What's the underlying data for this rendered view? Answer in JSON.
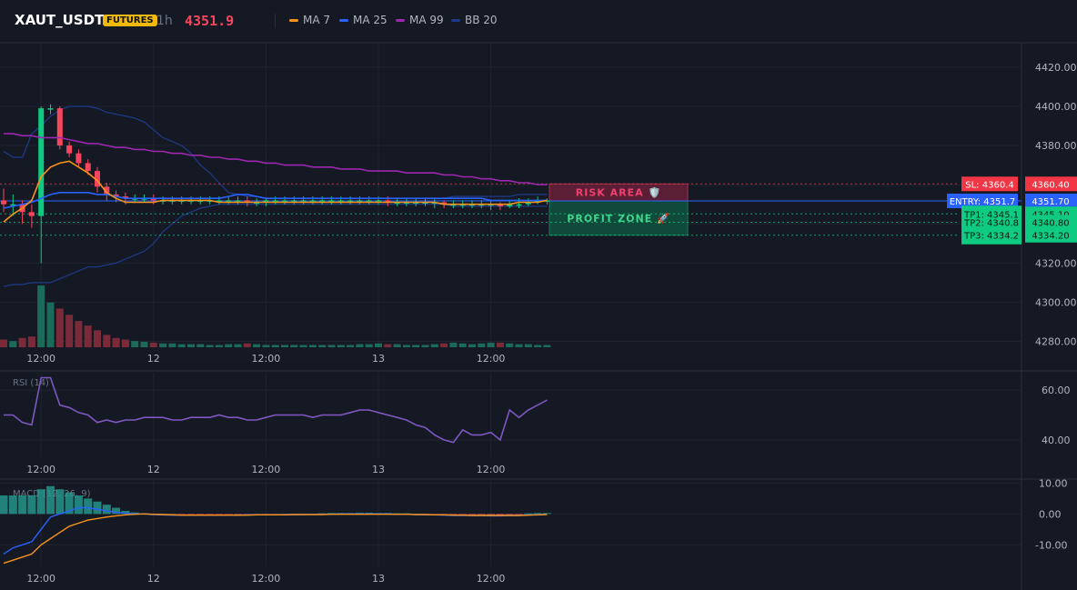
{
  "header": {
    "symbol": "XAUT_USDT",
    "badge": "FUTURES",
    "timeframe": "1h",
    "price": "4351.9",
    "legend": [
      {
        "label": "MA 7",
        "color": "#f7931a"
      },
      {
        "label": "MA 25",
        "color": "#2962ff"
      },
      {
        "label": "MA 99",
        "color": "#9c27b0"
      },
      {
        "label": "BB 20",
        "color": "#1e3a8a"
      }
    ]
  },
  "zones": {
    "risk_label": "RISK AREA 🛡️",
    "profit_label": "PROFIT ZONE 🚀"
  },
  "levels": [
    {
      "tag": "SL: 4360.4",
      "axis": "4360.40",
      "value": 4360.4,
      "color": "#f23645",
      "kind": "sl"
    },
    {
      "tag": "ENTRY: 4351.7",
      "axis": "4351.70",
      "value": 4351.7,
      "color": "#2962ff",
      "kind": "entry"
    },
    {
      "tag": "TP1: 4345.1",
      "axis": "4345.10",
      "value": 4345.1,
      "color": "#0ecb81",
      "kind": "tp"
    },
    {
      "tag": "TP2: 4340.8",
      "axis": "4340.80",
      "value": 4340.8,
      "color": "#0ecb81",
      "kind": "tp"
    },
    {
      "tag": "TP3: 4334.2",
      "axis": "4334.20",
      "value": 4334.2,
      "color": "#0ecb81",
      "kind": "tp"
    }
  ],
  "time_labels": [
    "12:00",
    "12",
    "12:00",
    "13",
    "12:00"
  ],
  "chart_data": [
    {
      "type": "candlestick",
      "title": "XAUT_USDT",
      "y_ticks": [
        "4420.00",
        "4400.00",
        "4380.00",
        "4360.00",
        "4340.00",
        "4320.00",
        "4300.00",
        "4280.00"
      ],
      "ylim": [
        4277,
        4432
      ],
      "x_tick_labels": [
        "12:00",
        "12",
        "12:00",
        "13",
        "12:00"
      ],
      "series": [
        {
          "name": "MA 7",
          "values": [
            4341,
            4345,
            4348,
            4352,
            4364,
            4369,
            4371,
            4372,
            4369,
            4366,
            4362,
            4356,
            4353,
            4351,
            4351,
            4351,
            4351,
            4352,
            4352,
            4352,
            4352,
            4352,
            4352,
            4351,
            4351,
            4351,
            4351,
            4351,
            4351,
            4351,
            4351,
            4351,
            4351,
            4351,
            4351,
            4351,
            4351,
            4351,
            4351,
            4351,
            4351,
            4351,
            4351,
            4351,
            4351,
            4351,
            4351,
            4350,
            4350,
            4350,
            4350,
            4350,
            4350,
            4350,
            4350,
            4351,
            4351,
            4351,
            4352
          ]
        },
        {
          "name": "MA 25",
          "values": [
            4348,
            4349,
            4350,
            4351,
            4353,
            4355,
            4356,
            4356,
            4356,
            4356,
            4355,
            4355,
            4354,
            4353,
            4353,
            4353,
            4353,
            4353,
            4353,
            4353,
            4353,
            4353,
            4353,
            4353,
            4354,
            4355,
            4355,
            4354,
            4353,
            4353,
            4353,
            4353,
            4353,
            4353,
            4353,
            4353,
            4353,
            4353,
            4353,
            4353,
            4353,
            4353,
            4353,
            4353,
            4353,
            4353,
            4353,
            4353,
            4353,
            4353,
            4353,
            4353,
            4352,
            4352,
            4352,
            4352,
            4352,
            4352,
            4352
          ]
        },
        {
          "name": "MA 99",
          "values": [
            4386,
            4386,
            4385,
            4385,
            4384,
            4384,
            4384,
            4383,
            4382,
            4381,
            4381,
            4380,
            4379,
            4379,
            4378,
            4378,
            4377,
            4377,
            4376,
            4376,
            4375,
            4375,
            4374,
            4374,
            4373,
            4373,
            4372,
            4372,
            4371,
            4371,
            4370,
            4370,
            4370,
            4369,
            4369,
            4369,
            4368,
            4368,
            4368,
            4367,
            4367,
            4367,
            4367,
            4366,
            4366,
            4366,
            4366,
            4365,
            4365,
            4364,
            4364,
            4363,
            4363,
            4362,
            4362,
            4361,
            4361,
            4360,
            4360
          ]
        },
        {
          "name": "BB 20",
          "values": [
            4377,
            4374,
            4374,
            4386,
            4390,
            4395,
            4398,
            4400,
            4400,
            4400,
            4399,
            4397,
            4396,
            4395,
            4394,
            4392,
            4388,
            4384,
            4382,
            4380,
            4376,
            4370,
            4366,
            4361,
            4356,
            4355,
            4354,
            4354,
            4353,
            4353,
            4353,
            4353,
            4353,
            4353,
            4353,
            4353,
            4353,
            4353,
            4353,
            4353,
            4353,
            4353,
            4353,
            4353,
            4353,
            4353,
            4353,
            4353,
            4354,
            4354,
            4354,
            4354,
            4354,
            4354,
            4354,
            4355,
            4355,
            4355,
            4355
          ]
        },
        {
          "name": "BB 20 lower",
          "values": [
            4308,
            4309,
            4309,
            4310,
            4310,
            4310,
            4312,
            4314,
            4316,
            4318,
            4318,
            4319,
            4320,
            4322,
            4324,
            4326,
            4330,
            4336,
            4340,
            4344,
            4346,
            4348,
            4349,
            4350,
            4350,
            4350,
            4350,
            4350,
            4350,
            4350,
            4350,
            4350,
            4350,
            4350,
            4350,
            4350,
            4350,
            4350,
            4350,
            4350,
            4350,
            4350,
            4350,
            4350,
            4350,
            4350,
            4350,
            4350,
            4349,
            4349,
            4349,
            4349,
            4349,
            4349,
            4349,
            4349,
            4349,
            4349,
            4349
          ]
        }
      ],
      "candles": {
        "open": [
          4352,
          4350,
          4350,
          4346,
          4344,
          4399,
          4399,
          4380,
          4376,
          4371,
          4367,
          4359,
          4355,
          4354,
          4353,
          4353,
          4353,
          4352,
          4352,
          4352,
          4352,
          4352,
          4352,
          4352,
          4352,
          4352,
          4352,
          4351,
          4351,
          4352,
          4352,
          4352,
          4352,
          4352,
          4352,
          4352,
          4352,
          4352,
          4352,
          4352,
          4352,
          4352,
          4351,
          4351,
          4351,
          4351,
          4351,
          4351,
          4350,
          4350,
          4350,
          4350,
          4350,
          4350,
          4349,
          4350,
          4350,
          4351,
          4352
        ],
        "close": [
          4350,
          4350,
          4346,
          4344,
          4399,
          4399,
          4380,
          4376,
          4371,
          4367,
          4359,
          4355,
          4354,
          4353,
          4353,
          4353,
          4352,
          4352,
          4352,
          4352,
          4352,
          4352,
          4352,
          4352,
          4352,
          4352,
          4351,
          4351,
          4352,
          4352,
          4352,
          4352,
          4352,
          4352,
          4352,
          4352,
          4352,
          4352,
          4352,
          4352,
          4352,
          4351,
          4351,
          4351,
          4351,
          4351,
          4351,
          4350,
          4350,
          4350,
          4350,
          4350,
          4350,
          4349,
          4350,
          4350,
          4351,
          4352,
          4352
        ],
        "high": [
          4358,
          4355,
          4352,
          4350,
          4400,
          4401,
          4400,
          4382,
          4378,
          4373,
          4369,
          4361,
          4357,
          4356,
          4355,
          4355,
          4355,
          4354,
          4354,
          4354,
          4354,
          4354,
          4354,
          4354,
          4354,
          4354,
          4354,
          4353,
          4353,
          4354,
          4354,
          4354,
          4354,
          4354,
          4354,
          4354,
          4354,
          4354,
          4354,
          4354,
          4354,
          4354,
          4353,
          4353,
          4353,
          4353,
          4353,
          4352,
          4352,
          4352,
          4352,
          4352,
          4352,
          4351,
          4352,
          4353,
          4353,
          4354,
          4353
        ],
        "low": [
          4346,
          4344,
          4340,
          4338,
          4320,
          4396,
          4378,
          4374,
          4369,
          4365,
          4356,
          4352,
          4351,
          4350,
          4351,
          4351,
          4350,
          4350,
          4350,
          4350,
          4350,
          4350,
          4350,
          4350,
          4350,
          4350,
          4349,
          4349,
          4349,
          4350,
          4350,
          4350,
          4350,
          4350,
          4350,
          4350,
          4350,
          4350,
          4350,
          4350,
          4350,
          4349,
          4349,
          4349,
          4349,
          4349,
          4348,
          4348,
          4348,
          4348,
          4348,
          4348,
          4347,
          4347,
          4348,
          4348,
          4349,
          4350,
          4350
        ]
      },
      "volume": [
        10,
        8,
        12,
        14,
        80,
        58,
        50,
        42,
        34,
        28,
        22,
        16,
        12,
        10,
        8,
        7,
        6,
        5,
        5,
        4,
        4,
        4,
        3,
        3,
        4,
        4,
        5,
        4,
        3,
        3,
        3,
        3,
        3,
        3,
        3,
        3,
        3,
        3,
        4,
        4,
        5,
        4,
        4,
        3,
        3,
        3,
        4,
        5,
        6,
        5,
        4,
        5,
        6,
        6,
        5,
        4,
        4,
        3,
        3
      ]
    },
    {
      "type": "line",
      "title": "RSI (14)",
      "y_ticks": [
        "60.00",
        "40.00"
      ],
      "ylim": [
        33,
        67
      ],
      "x_tick_labels": [
        "12:00",
        "12",
        "12:00",
        "13",
        "12:00"
      ],
      "series": [
        {
          "name": "RSI (14)",
          "values": [
            50,
            50,
            47,
            46,
            65,
            65,
            54,
            53,
            51,
            50,
            47,
            48,
            47,
            48,
            48,
            49,
            49,
            49,
            48,
            48,
            49,
            49,
            49,
            50,
            49,
            49,
            48,
            48,
            49,
            50,
            50,
            50,
            50,
            49,
            50,
            50,
            50,
            51,
            52,
            52,
            51,
            50,
            49,
            48,
            46,
            45,
            42,
            40,
            39,
            44,
            42,
            42,
            43,
            40,
            52,
            49,
            52,
            54,
            56
          ]
        }
      ]
    },
    {
      "type": "bar",
      "title": "MACD (12, 26, 9)",
      "y_ticks": [
        "10.00",
        "0.00",
        "-10.00"
      ],
      "ylim": [
        -17,
        11
      ],
      "x_tick_labels": [
        "12:00",
        "12",
        "12:00",
        "13",
        "12:00"
      ],
      "histogram": [
        6,
        6,
        6,
        6,
        8,
        9,
        8,
        7,
        6,
        5,
        4,
        3,
        2,
        1,
        0.5,
        0.2,
        -0.4,
        -0.5,
        -0.5,
        -0.5,
        -0.5,
        -0.5,
        -0.5,
        -0.5,
        -0.5,
        -0.4,
        -0.4,
        -0.3,
        -0.3,
        -0.3,
        -0.2,
        -0.2,
        -0.1,
        -0.1,
        0.2,
        0.3,
        0.3,
        0.3,
        0.4,
        0.4,
        0.3,
        0.3,
        0.2,
        0.2,
        -0.1,
        -0.1,
        -0.2,
        -0.3,
        -0.3,
        -0.4,
        -0.4,
        -0.4,
        -0.4,
        -0.5,
        -0.4,
        -0.2,
        0.2,
        0.3,
        0.3
      ],
      "series": [
        {
          "name": "MACD",
          "values": [
            -13,
            -11,
            -10,
            -9,
            -5,
            -1,
            0,
            1,
            2,
            2,
            1.5,
            1,
            0.5,
            0.2,
            0,
            0,
            -0.2,
            -0.3,
            -0.4,
            -0.4,
            -0.4,
            -0.4,
            -0.4,
            -0.4,
            -0.4,
            -0.4,
            -0.3,
            -0.3,
            -0.3,
            -0.3,
            -0.2,
            -0.2,
            -0.2,
            -0.1,
            -0.1,
            -0.1,
            0,
            0,
            0,
            0,
            0,
            0,
            -0.1,
            -0.1,
            -0.2,
            -0.3,
            -0.3,
            -0.4,
            -0.5,
            -0.5,
            -0.5,
            -0.5,
            -0.6,
            -0.6,
            -0.5,
            -0.5,
            -0.3,
            -0.2,
            -0.1
          ]
        },
        {
          "name": "Signal",
          "values": [
            -16,
            -15,
            -14,
            -13,
            -10,
            -8,
            -6,
            -4,
            -3,
            -2,
            -1.5,
            -1,
            -0.6,
            -0.3,
            -0.1,
            0,
            -0.1,
            -0.2,
            -0.3,
            -0.4,
            -0.4,
            -0.4,
            -0.4,
            -0.4,
            -0.4,
            -0.4,
            -0.4,
            -0.3,
            -0.3,
            -0.3,
            -0.3,
            -0.2,
            -0.2,
            -0.2,
            -0.2,
            -0.1,
            -0.1,
            -0.1,
            -0.1,
            -0.1,
            -0.1,
            -0.1,
            -0.1,
            -0.1,
            -0.2,
            -0.2,
            -0.3,
            -0.3,
            -0.4,
            -0.4,
            -0.5,
            -0.5,
            -0.5,
            -0.5,
            -0.5,
            -0.5,
            -0.4,
            -0.3,
            -0.2
          ]
        }
      ]
    }
  ]
}
